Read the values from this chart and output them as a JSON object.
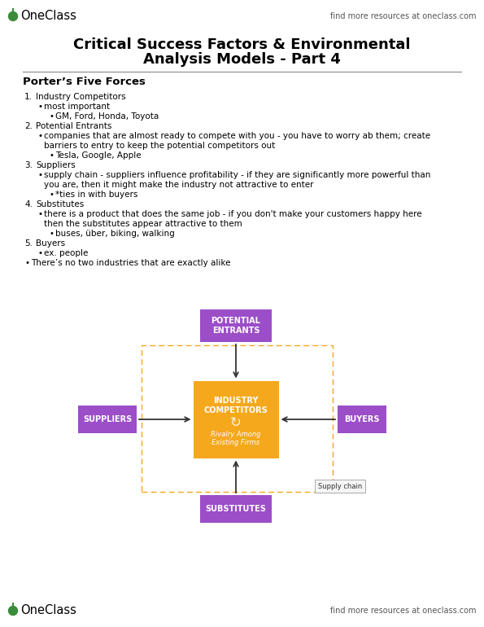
{
  "bg_color": "#ffffff",
  "header_logo_text": "OneClass",
  "header_right_text": "find more resources at oneclass.com",
  "footer_logo_text": "OneClass",
  "footer_right_text": "find more resources at oneclass.com",
  "title_line1": "Critical Success Factors & Environmental",
  "title_line2": "Analysis Models - Part 4",
  "section_title": "Porter’s Five Forces",
  "text_lines": [
    {
      "indent": 0,
      "type": "numbered",
      "num": "1.",
      "text": "Industry Competitors"
    },
    {
      "indent": 1,
      "type": "bullet",
      "text": "most important"
    },
    {
      "indent": 2,
      "type": "bullet_small",
      "text": "GM, Ford, Honda, Toyota"
    },
    {
      "indent": 0,
      "type": "numbered",
      "num": "2.",
      "text": "Potential Entrants"
    },
    {
      "indent": 1,
      "type": "bullet",
      "text": "companies that are almost ready to compete with you - you have to worry ab them; create"
    },
    {
      "indent": 1,
      "type": "continuation",
      "text": "barriers to entry to keep the potential competitors out"
    },
    {
      "indent": 2,
      "type": "bullet_small",
      "text": "Tesla, Google, Apple"
    },
    {
      "indent": 0,
      "type": "numbered",
      "num": "3.",
      "text": "Suppliers"
    },
    {
      "indent": 1,
      "type": "bullet",
      "text": "supply chain - suppliers influence profitability - if they are significantly more powerful than"
    },
    {
      "indent": 1,
      "type": "continuation",
      "text": "you are, then it might make the industry not attractive to enter"
    },
    {
      "indent": 2,
      "type": "bullet_small",
      "text": "*ties in with buyers"
    },
    {
      "indent": 0,
      "type": "numbered",
      "num": "4.",
      "text": "Substitutes"
    },
    {
      "indent": 1,
      "type": "bullet",
      "text": "there is a product that does the same job - if you don't make your customers happy here"
    },
    {
      "indent": 1,
      "type": "continuation",
      "text": "then the substitutes appear attractive to them"
    },
    {
      "indent": 2,
      "type": "bullet_small",
      "text": "buses, über, biking, walking"
    },
    {
      "indent": 0,
      "type": "numbered",
      "num": "5.",
      "text": "Buyers"
    },
    {
      "indent": 1,
      "type": "bullet",
      "text": "ex. people"
    },
    {
      "indent": 0,
      "type": "bullet",
      "text": "There’s no two industries that are exactly alike"
    }
  ],
  "purple_color": "#9B4EC8",
  "orange_color": "#F5A81C",
  "arrow_color": "#333333",
  "supply_chain_label": "Supply chain"
}
